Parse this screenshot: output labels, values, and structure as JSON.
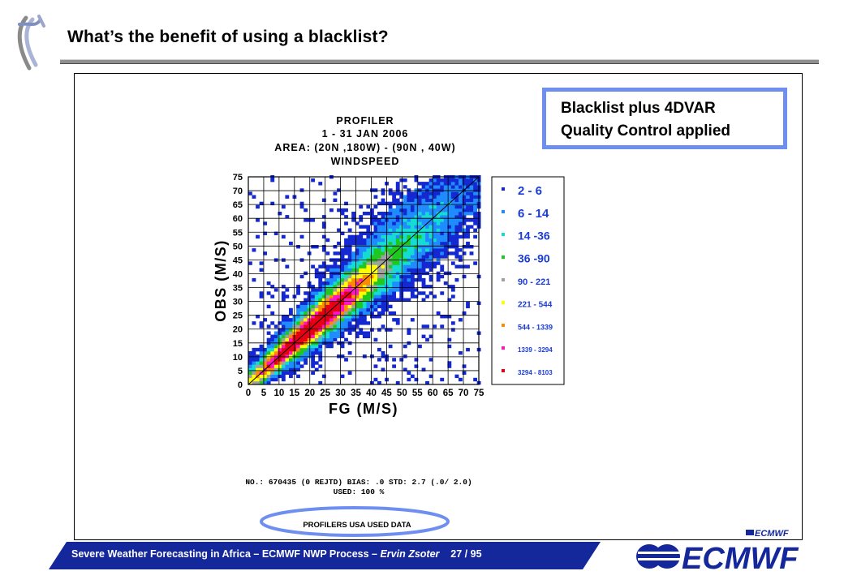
{
  "slide": {
    "title": "What’s the benefit of using a blacklist?",
    "footer": {
      "text": "Severe Weather Forecasting in Africa – ECMWF NWP Process – ",
      "author": "Ervin Zsoter",
      "page": "27 / 95"
    },
    "callout": {
      "line1": "Blacklist plus 4DVAR",
      "line2": "Quality Control applied"
    },
    "logo_small_text": "ECMWF",
    "logo_text": "ECMWF"
  },
  "chart_data": {
    "type": "heatmap",
    "title_lines": [
      "PROFILER",
      "1 - 31 JAN 2006",
      "AREA: (20N ,180W) - (90N , 40W)",
      "WINDSPEED"
    ],
    "xlabel": "FG (M/S)",
    "ylabel": "OBS (M/S)",
    "xlim": [
      0,
      75
    ],
    "ylim": [
      0,
      75
    ],
    "x_ticks": [
      0,
      5,
      10,
      15,
      20,
      25,
      30,
      35,
      40,
      45,
      50,
      55,
      60,
      65,
      70,
      75
    ],
    "y_ticks": [
      0,
      5,
      10,
      15,
      20,
      25,
      30,
      35,
      40,
      45,
      50,
      55,
      60,
      65,
      70,
      75
    ],
    "grid": true,
    "diagonal": "y = x",
    "legend_position": "right",
    "legend": [
      {
        "label": "2 - 6",
        "color": "#1428d2"
      },
      {
        "label": "6 - 14",
        "color": "#1e8cff"
      },
      {
        "label": "14 -36",
        "color": "#14dcd2"
      },
      {
        "label": "36 -90",
        "color": "#1ec81e"
      },
      {
        "label": "90 - 221",
        "color": "#a0a0a0"
      },
      {
        "label": "221 - 544",
        "color": "#ffff00"
      },
      {
        "label": "544 - 1339",
        "color": "#ff8c00"
      },
      {
        "label": "1339 - 3294",
        "color": "#ff14c8"
      },
      {
        "label": "3294 - 8103",
        "color": "#e60014"
      }
    ],
    "stats": {
      "line1": "NO.: 670435 (0 REJTD) BIAS: .0 STD: 2.7 (.0/ 2.0)",
      "line2": "USED: 100 %"
    },
    "footnote": "PROFILERS USA USED DATA",
    "distribution": {
      "description_of_density_model": "counts concentrated along y = x, peak near 15-25 m/s",
      "peak_center": 20,
      "spread_ms": 2.7
    }
  }
}
